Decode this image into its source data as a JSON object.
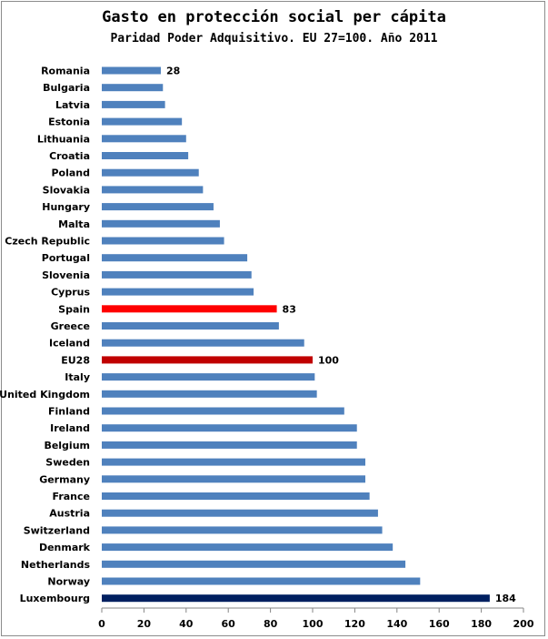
{
  "chart_data": {
    "type": "bar",
    "orientation": "horizontal",
    "title": "Gasto en protección social per cápita",
    "subtitle": "Paridad Poder Adquisitivo. EU 27=100. Año 2011",
    "xlabel": "",
    "ylabel": "",
    "xlim": [
      0,
      200
    ],
    "x_ticks": [
      0,
      20,
      40,
      60,
      80,
      100,
      120,
      140,
      160,
      180,
      200
    ],
    "grid": false,
    "categories": [
      "Romania",
      "Bulgaria",
      "Latvia",
      "Estonia",
      "Lithuania",
      "Croatia",
      "Poland",
      "Slovakia",
      "Hungary",
      "Malta",
      "Czech Republic",
      "Portugal",
      "Slovenia",
      "Cyprus",
      "Spain",
      "Greece",
      "Iceland",
      "EU28",
      "Italy",
      "United Kingdom",
      "Finland",
      "Ireland",
      "Belgium",
      "Sweden",
      "Germany",
      "France",
      "Austria",
      "Switzerland",
      "Denmark",
      "Netherlands",
      "Norway",
      "Luxembourg"
    ],
    "values": [
      28,
      29,
      30,
      38,
      40,
      41,
      46,
      48,
      53,
      56,
      58,
      69,
      71,
      72,
      83,
      84,
      96,
      100,
      101,
      102,
      115,
      121,
      121,
      125,
      125,
      127,
      131,
      133,
      138,
      144,
      151,
      184
    ],
    "colors": {
      "default": "#4f81bd",
      "Spain": "#ff0000",
      "EU28": "#c00000",
      "Luxembourg": "#002060"
    },
    "data_labels": [
      {
        "category": "Romania",
        "text": "28"
      },
      {
        "category": "Spain",
        "text": "83"
      },
      {
        "category": "EU28",
        "text": "100"
      },
      {
        "category": "Luxembourg",
        "text": "184"
      }
    ]
  }
}
